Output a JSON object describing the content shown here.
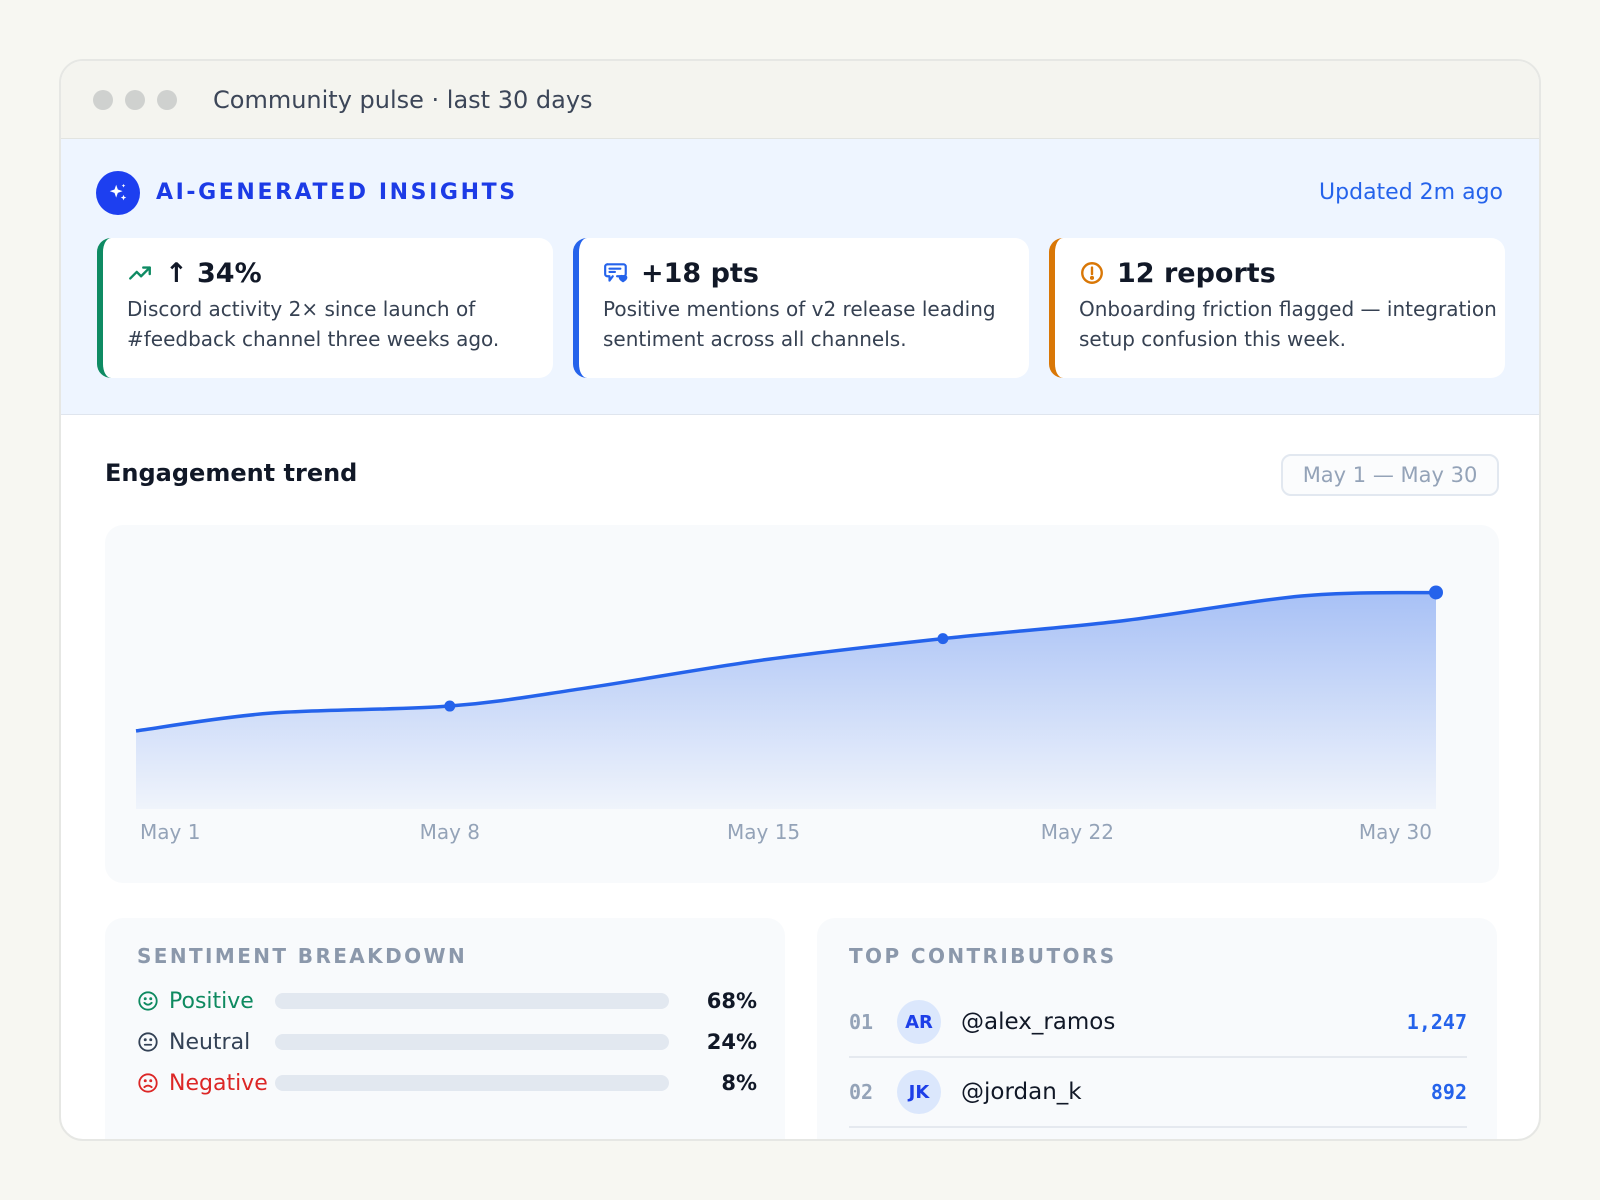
{
  "window": {
    "title": "Community pulse · last 30 days"
  },
  "insights": {
    "label": "AI-GENERATED INSIGHTS",
    "updated": "Updated 2m ago",
    "cards": [
      {
        "icon": "trending-up-icon",
        "value": "↑ 34%",
        "text": "Discord activity 2× since launch of #feedback channel three weeks ago.",
        "accent": "#0e8b63"
      },
      {
        "icon": "chat-heart-icon",
        "value": "+18 pts",
        "text": "Positive mentions of v2 release leading sentiment across all channels.",
        "accent": "#2563eb"
      },
      {
        "icon": "alert-circle-icon",
        "value": "12 reports",
        "text": "Onboarding friction flagged — integration setup confusion this week.",
        "accent": "#d97706"
      }
    ]
  },
  "trend": {
    "title": "Engagement trend",
    "range": "May 1 — May 30"
  },
  "chart_data": {
    "type": "area",
    "x": [
      "May 1",
      "May 4",
      "May 8",
      "May 11",
      "May 15",
      "May 19",
      "May 23",
      "May 27",
      "May 30"
    ],
    "values": [
      22,
      27,
      29,
      34,
      42,
      48,
      53,
      60,
      61
    ],
    "ylim": [
      0,
      80
    ],
    "tick_labels": [
      "May 1",
      "May 8",
      "May 15",
      "May 22",
      "May 30"
    ],
    "highlighted_points": [
      "May 8",
      "May 19",
      "May 30"
    ],
    "color": "#2563eb",
    "grid": false
  },
  "sentiment": {
    "title": "SENTIMENT BREAKDOWN",
    "rows": [
      {
        "label": "Positive",
        "percent": 68,
        "percent_label": "68%",
        "color": "#0e9467",
        "text_color": "#0e8a60"
      },
      {
        "label": "Neutral",
        "percent": 24,
        "percent_label": "24%",
        "color": "#94a3b8",
        "text_color": "#334155"
      },
      {
        "label": "Negative",
        "percent": 8,
        "percent_label": "8%",
        "color": "#dc2626",
        "text_color": "#dc2626"
      }
    ]
  },
  "contributors": {
    "title": "TOP CONTRIBUTORS",
    "rows": [
      {
        "rank": "01",
        "initials": "AR",
        "handle": "@alex_ramos",
        "count": "1,247"
      },
      {
        "rank": "02",
        "initials": "JK",
        "handle": "@jordan_k",
        "count": "892"
      }
    ]
  }
}
